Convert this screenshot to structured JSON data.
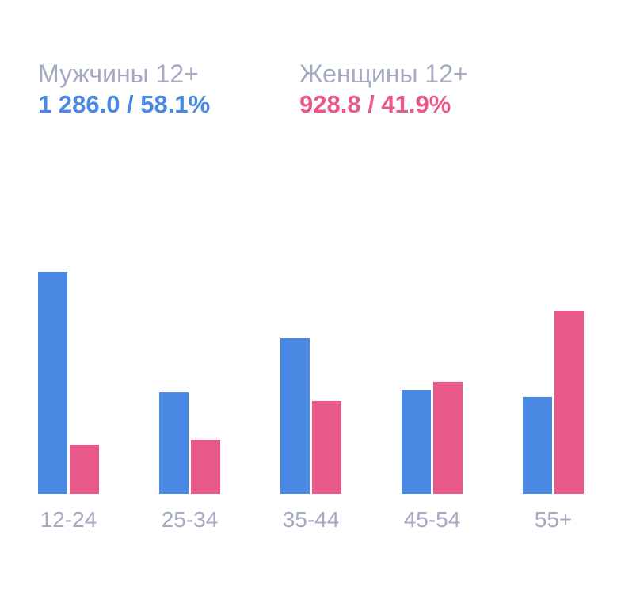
{
  "legend": [
    {
      "name": "Мужчины 12+",
      "value": "1 286.0 / 58.1%",
      "color": "#4a89e3"
    },
    {
      "name": "Женщины 12+",
      "value": "928.8 / 41.9%",
      "color": "#e8588a"
    }
  ],
  "chart_data": {
    "type": "bar",
    "categories": [
      "12-24",
      "25-34",
      "35-44",
      "45-54",
      "55+"
    ],
    "series": [
      {
        "name": "Мужчины 12+",
        "values": [
          100,
          45.7,
          70,
          46.8,
          43.6
        ],
        "color": "#4a89e3"
      },
      {
        "name": "Женщины 12+",
        "values": [
          22.1,
          24.3,
          41.8,
          50.4,
          82.5
        ],
        "color": "#e8588a"
      }
    ],
    "ylim": [
      0,
      100
    ],
    "grid": false,
    "legend_placement": "top-left"
  }
}
